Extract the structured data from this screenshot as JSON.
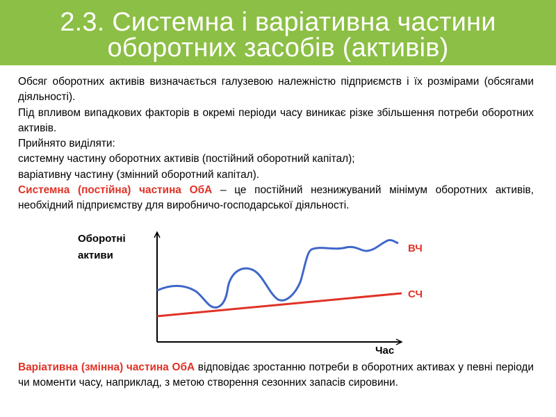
{
  "title": {
    "line1": "2.3. Системна і варіативна частини",
    "line2": "оборотних засобів (активів)"
  },
  "paragraphs": {
    "p1": "Обсяг оборотних активів визначається галузевою належністю підприємств і їх розмірами (обсягами діяльності).",
    "p2": "Під впливом випадкових факторів в окремі періоди часу виникає різке збільшення потреби оборотних активів.",
    "p3": "Прийнято виділяти:",
    "p4": "системну частину оборотних активів (постійний оборотний капітал);",
    "p5": "варіативну частину (змінний оборотний капітал).",
    "p6_bold": "Системна (постійна) частина ОбА",
    "p6_rest": " – це постійний незнижуваний мінімум оборотних активів, необхідний підприємству для виробничо-господарської діяльності.",
    "p7_bold": "Варіативна (змінна) частина ОбА",
    "p7_rest": " відповідає зростанню потреби в оборотних активах у певні періоди чи моменти часу, наприклад, з метою створення сезонних запасів сировини."
  },
  "diagram": {
    "y_label_line1": "Оборотні",
    "y_label_line2": "активи",
    "x_label": "Час",
    "vc_label": "ВЧ",
    "sc_label": "СЧ"
  },
  "colors": {
    "header_bg": "#8cbf45",
    "title_text": "#ffffff",
    "accent_red": "#e03226",
    "curve_blue": "#3f67c9",
    "axis": "#000000"
  }
}
